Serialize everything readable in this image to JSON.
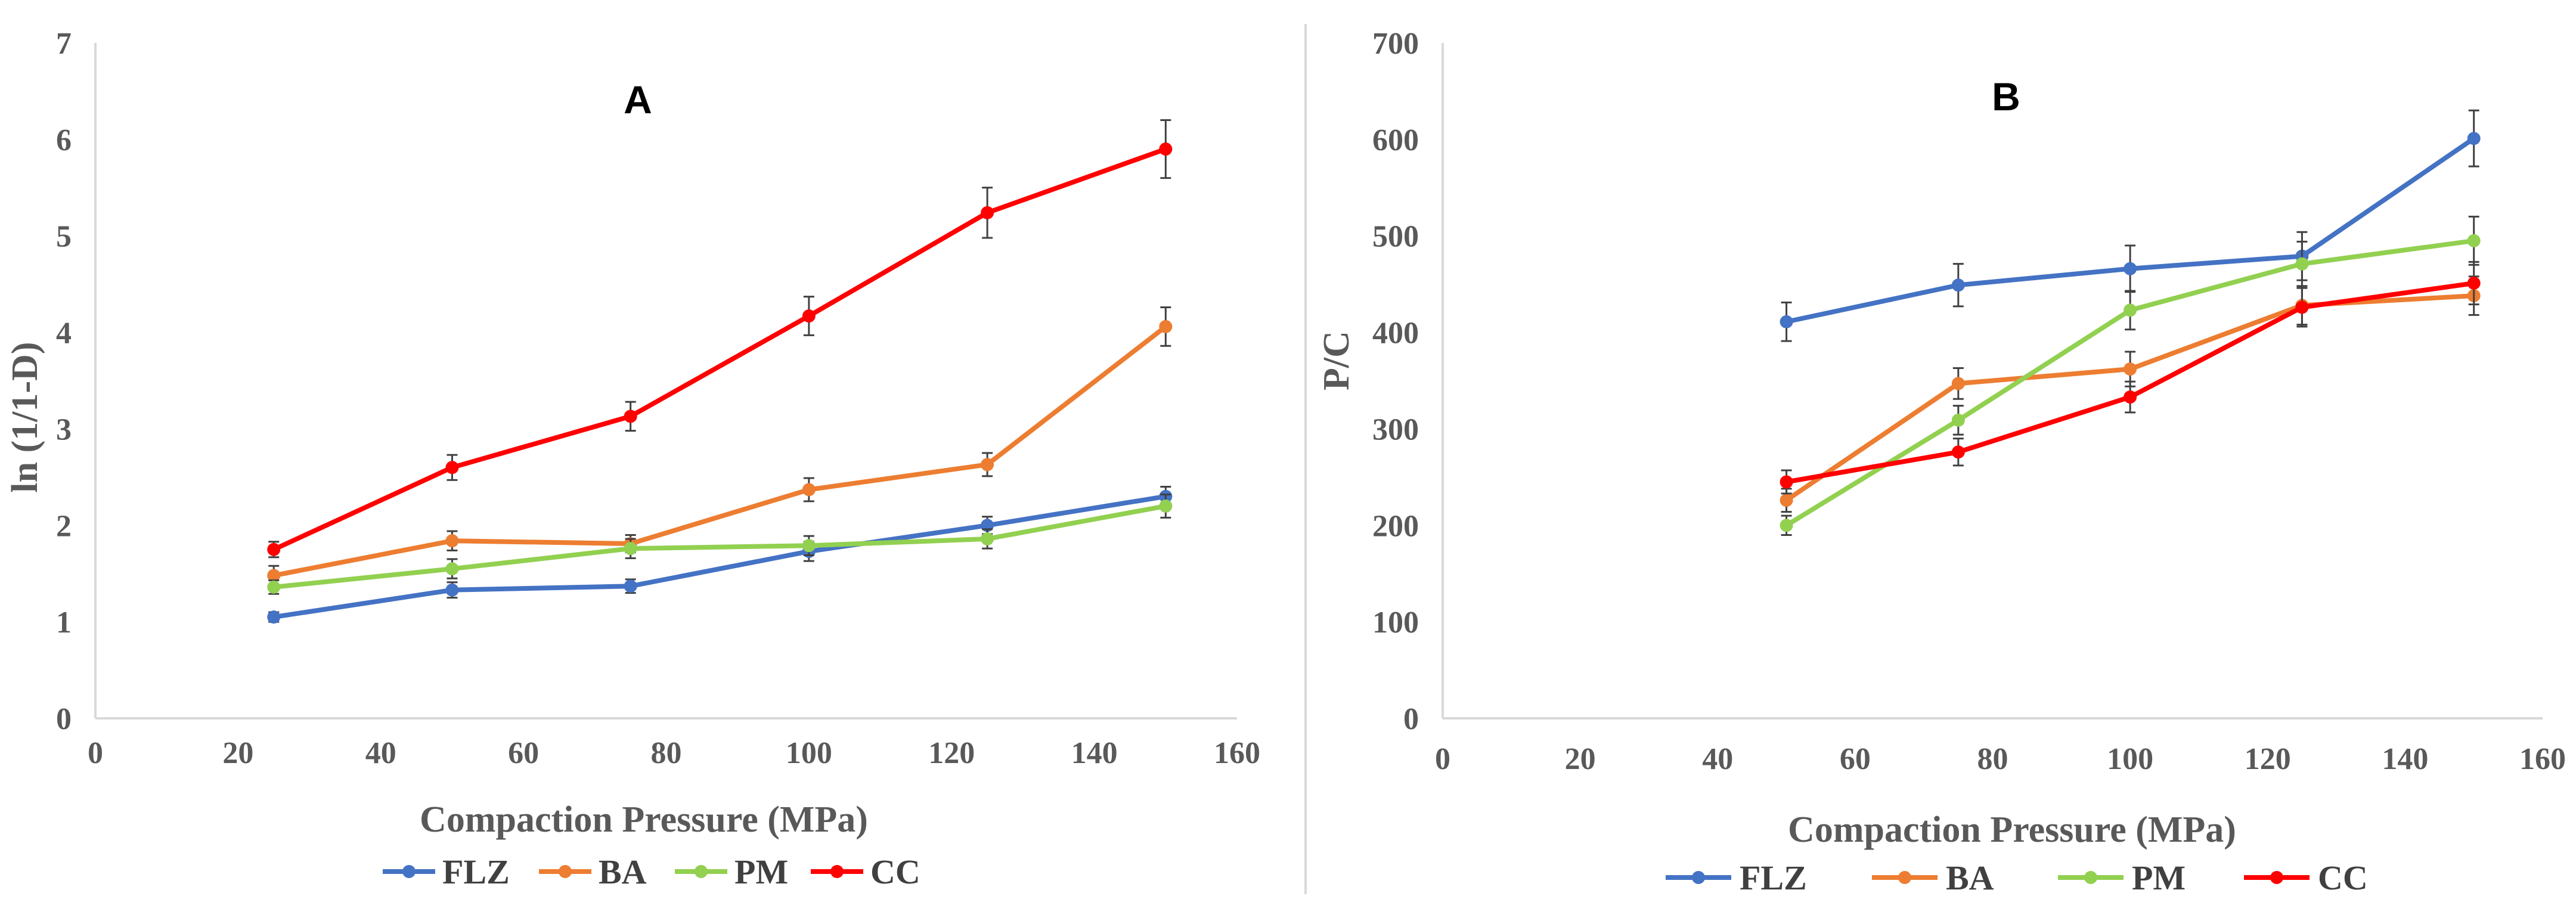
{
  "figure": {
    "divider_color": "#d9d9d9",
    "axis_color": "#d9d9d9",
    "tick_text_color": "#595959",
    "errorbar_color": "#404040"
  },
  "chart_data": [
    {
      "panel": "A",
      "type": "line",
      "title": "A",
      "xlabel": "Compaction Pressure (MPa)",
      "ylabel": "ln (1/1-D)",
      "xlim": [
        0,
        160
      ],
      "ylim": [
        0,
        7
      ],
      "xticks": [
        "0",
        "20",
        "40",
        "60",
        "80",
        "100",
        "120",
        "140",
        "160"
      ],
      "yticks": [
        "0",
        "1",
        "2",
        "3",
        "4",
        "5",
        "6",
        "7"
      ],
      "legend_position": "bottom",
      "grid": false,
      "x": [
        25,
        50,
        75,
        100,
        125,
        150
      ],
      "series": [
        {
          "name": "FLZ",
          "color": "#4472c4",
          "values": [
            1.05,
            1.33,
            1.37,
            1.73,
            2.0,
            2.3
          ],
          "errors": [
            0.05,
            0.08,
            0.07,
            0.1,
            0.09,
            0.1
          ]
        },
        {
          "name": "BA",
          "color": "#ed7d31",
          "values": [
            1.48,
            1.84,
            1.81,
            2.37,
            2.63,
            4.06
          ],
          "errors": [
            0.1,
            0.1,
            0.09,
            0.12,
            0.12,
            0.2
          ]
        },
        {
          "name": "PM",
          "color": "#92d050",
          "values": [
            1.36,
            1.55,
            1.76,
            1.79,
            1.86,
            2.2
          ],
          "errors": [
            0.07,
            0.1,
            0.1,
            0.1,
            0.1,
            0.12
          ]
        },
        {
          "name": "CC",
          "color": "#ff0000",
          "values": [
            1.75,
            2.6,
            3.13,
            4.17,
            5.24,
            5.9
          ],
          "errors": [
            0.08,
            0.13,
            0.15,
            0.2,
            0.26,
            0.3
          ]
        }
      ]
    },
    {
      "panel": "B",
      "type": "line",
      "title": "B",
      "xlabel": "Compaction Pressure (MPa)",
      "ylabel": "P/C",
      "xlim": [
        0,
        160
      ],
      "ylim": [
        0,
        700
      ],
      "xticks": [
        "0",
        "20",
        "40",
        "60",
        "80",
        "100",
        "120",
        "140",
        "160"
      ],
      "yticks": [
        "0",
        "100",
        "200",
        "300",
        "400",
        "500",
        "600",
        "700"
      ],
      "legend_position": "bottom",
      "grid": false,
      "x": [
        50,
        75,
        100,
        125,
        150
      ],
      "series": [
        {
          "name": "FLZ",
          "color": "#4472c4",
          "values": [
            411,
            449,
            466,
            479,
            601
          ],
          "errors": [
            20,
            22,
            24,
            25,
            29
          ]
        },
        {
          "name": "BA",
          "color": "#ed7d31",
          "values": [
            226,
            347,
            362,
            428,
            438
          ],
          "errors": [
            12,
            16,
            18,
            20,
            20
          ]
        },
        {
          "name": "PM",
          "color": "#92d050",
          "values": [
            200,
            309,
            423,
            471,
            495
          ],
          "errors": [
            10,
            15,
            20,
            23,
            25
          ]
        },
        {
          "name": "CC",
          "color": "#ff0000",
          "values": [
            245,
            276,
            333,
            426,
            451
          ],
          "errors": [
            12,
            14,
            16,
            20,
            22
          ]
        }
      ]
    }
  ]
}
